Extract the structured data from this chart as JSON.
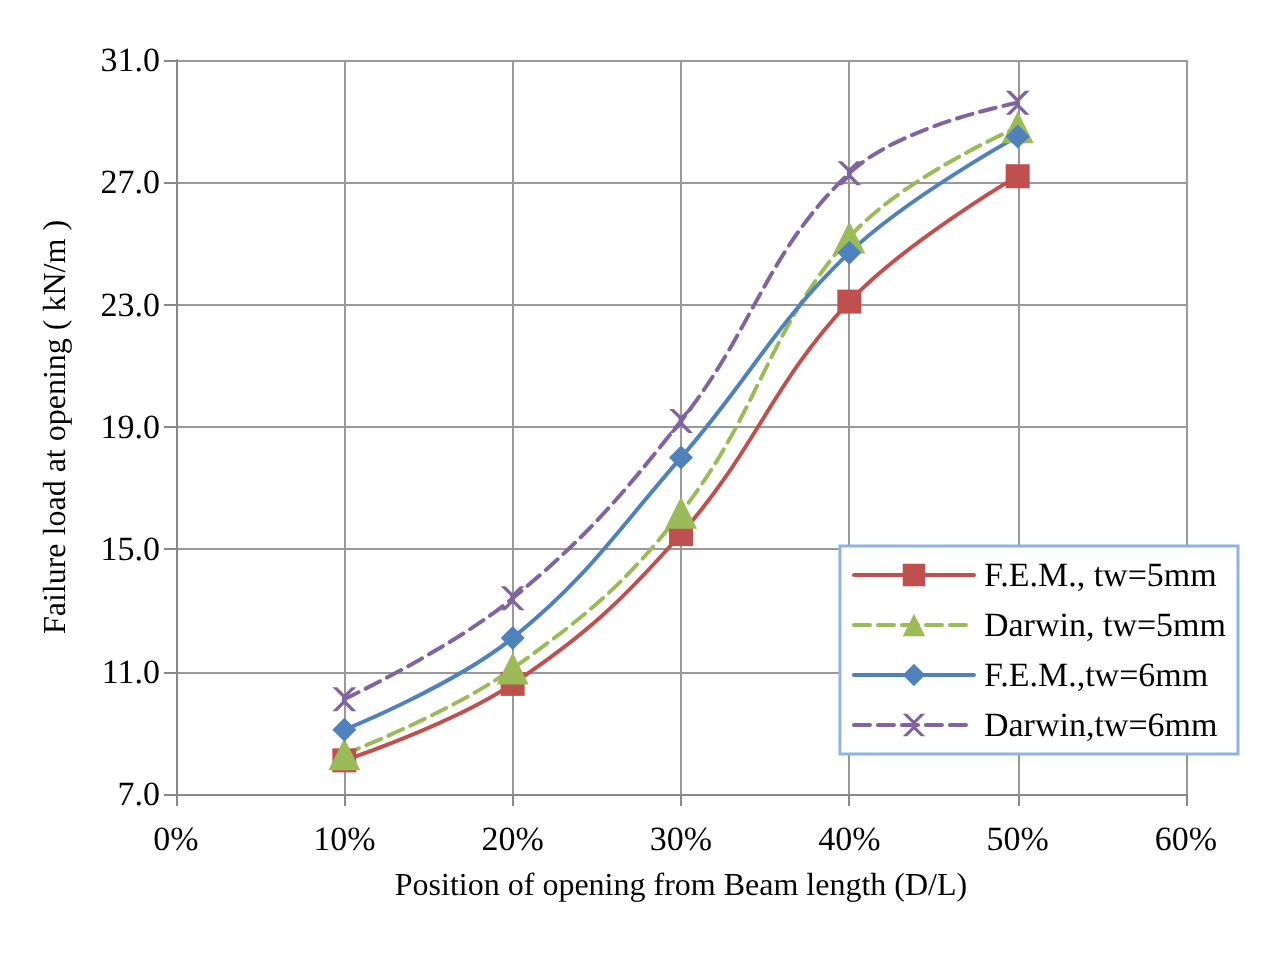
{
  "chart_data": {
    "type": "line",
    "xlabel": "Position of opening from Beam length (D/L)",
    "ylabel": "Failure load at opening ( kN/m )",
    "x": [
      10,
      20,
      30,
      40,
      50
    ],
    "xlim": [
      0,
      60
    ],
    "xticks": [
      {
        "value": 0,
        "label": "0%"
      },
      {
        "value": 10,
        "label": "10%"
      },
      {
        "value": 20,
        "label": "20%"
      },
      {
        "value": 30,
        "label": "30%"
      },
      {
        "value": 40,
        "label": "40%"
      },
      {
        "value": 50,
        "label": "50%"
      },
      {
        "value": 60,
        "label": "60%"
      }
    ],
    "ylim": [
      7,
      31
    ],
    "yticks": [
      {
        "value": 7,
        "label": "7.0"
      },
      {
        "value": 11,
        "label": "11.0"
      },
      {
        "value": 15,
        "label": "15.0"
      },
      {
        "value": 19,
        "label": "19.0"
      },
      {
        "value": 23,
        "label": "23.0"
      },
      {
        "value": 27,
        "label": "27.0"
      },
      {
        "value": 31,
        "label": "31.0"
      }
    ],
    "grid": true,
    "legend": "bottom right",
    "series": [
      {
        "name": "F.E.M., tw=5mm",
        "color": "#c0504d",
        "marker": "square",
        "line_style": "solid",
        "values": [
          8.1,
          10.6,
          15.5,
          23.1,
          27.2
        ]
      },
      {
        "name": "Darwin, tw=5mm",
        "color": "#9bbb59",
        "marker": "triangle",
        "line_style": "dashed",
        "values": [
          8.3,
          11.1,
          16.2,
          25.2,
          28.8
        ]
      },
      {
        "name": "F.E.M.,tw=6mm",
        "color": "#4f81bd",
        "marker": "diamond",
        "line_style": "solid",
        "values": [
          9.1,
          12.1,
          18.0,
          24.7,
          28.5
        ]
      },
      {
        "name": "Darwin,tw=6mm",
        "color": "#8064a2",
        "marker": "cross",
        "line_style": "dashed",
        "values": [
          10.1,
          13.4,
          19.2,
          27.3,
          29.6
        ]
      }
    ]
  }
}
